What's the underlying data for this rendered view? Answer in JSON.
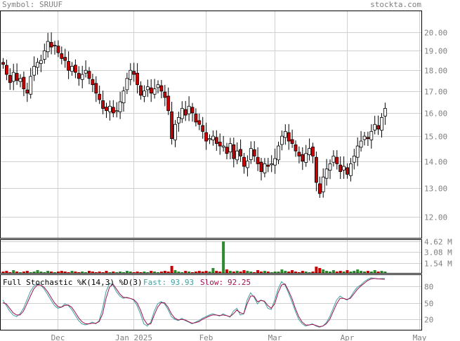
{
  "header": {
    "symbol_label": "Symbol: SRUUF",
    "site": "stockta.com"
  },
  "colors": {
    "up": "#ffffff",
    "down": "#cc0000",
    "candle_outline": "#000000",
    "vol_up": "#2e8b2e",
    "vol_down": "#cc0000",
    "grid": "#d0d0d0",
    "frame": "#000000",
    "stoch_fast": "#40a0a0",
    "stoch_slow": "#a01050"
  },
  "chart_data": [
    {
      "type": "candlestick",
      "title": "Symbol: SRUUF",
      "ylim": [
        11.3,
        21.2
      ],
      "yscale": "log",
      "yticks": [
        "12.00",
        "13.00",
        "14.00",
        "15.00",
        "16.00",
        "17.00",
        "18.00",
        "19.00",
        "20.00"
      ],
      "grid": true,
      "closes": [
        18.3,
        17.8,
        17.4,
        17.9,
        17.5,
        17.6,
        17.1,
        16.9,
        17.7,
        18.2,
        18.4,
        18.5,
        19.0,
        19.5,
        19.2,
        19.3,
        18.9,
        18.6,
        18.5,
        18.0,
        18.2,
        17.9,
        17.6,
        17.8,
        18.0,
        17.6,
        17.3,
        16.9,
        16.6,
        16.2,
        16.1,
        16.3,
        16.0,
        16.1,
        16.5,
        17.0,
        17.6,
        18.0,
        17.8,
        17.3,
        16.8,
        17.0,
        17.2,
        16.9,
        17.1,
        17.3,
        17.0,
        16.7,
        16.1,
        14.9,
        15.5,
        15.8,
        16.2,
        15.9,
        16.3,
        16.0,
        15.6,
        15.5,
        15.2,
        14.8,
        14.9,
        15.0,
        14.7,
        14.6,
        14.6,
        14.3,
        14.7,
        14.1,
        14.4,
        14.2,
        13.8,
        14.0,
        14.5,
        14.2,
        13.9,
        13.6,
        13.9,
        13.8,
        13.9,
        14.1,
        14.6,
        15.0,
        15.2,
        14.8,
        14.7,
        14.4,
        14.2,
        14.0,
        14.3,
        14.5,
        14.2,
        13.2,
        12.8,
        13.4,
        13.7,
        13.9,
        14.2,
        13.9,
        13.6,
        13.8,
        13.5,
        13.9,
        14.2,
        14.6,
        14.8,
        15.0,
        14.9,
        15.2,
        15.5,
        15.3,
        15.8,
        16.2
      ],
      "volume": {
        "ylim": [
          0,
          4.8
        ],
        "yticks": [
          "4.62 M",
          "3.08 M",
          "1.54 M"
        ],
        "values": [
          0.3,
          0.4,
          0.2,
          0.5,
          0.3,
          0.2,
          0.3,
          0.4,
          0.2,
          0.3,
          0.5,
          0.3,
          0.2,
          0.4,
          0.3,
          0.2,
          0.3,
          0.4,
          0.3,
          0.2,
          0.4,
          0.3,
          0.2,
          0.3,
          0.2,
          0.4,
          0.3,
          0.2,
          0.3,
          0.2,
          0.4,
          0.2,
          0.3,
          0.2,
          0.3,
          0.2,
          0.4,
          0.3,
          0.2,
          0.3,
          0.2,
          0.3,
          0.2,
          0.4,
          0.3,
          0.2,
          0.3,
          0.4,
          0.3,
          1.1,
          0.5,
          0.3,
          0.2,
          0.4,
          0.3,
          0.2,
          0.3,
          0.4,
          0.3,
          0.4,
          0.3,
          0.8,
          0.4,
          0.3,
          4.6,
          0.6,
          0.4,
          0.3,
          0.4,
          0.3,
          0.5,
          0.4,
          0.3,
          0.2,
          0.5,
          0.3,
          0.4,
          0.3,
          0.2,
          0.3,
          0.3,
          0.6,
          0.4,
          0.3,
          0.5,
          0.3,
          0.2,
          0.4,
          0.3,
          0.2,
          0.3,
          1.0,
          0.8,
          0.6,
          0.4,
          0.3,
          0.5,
          0.3,
          0.4,
          0.3,
          0.5,
          0.3,
          0.4,
          0.6,
          0.4,
          0.3,
          0.4,
          0.3,
          0.5,
          0.3,
          0.4,
          0.3
        ]
      }
    },
    {
      "type": "line",
      "title": "Full Stochastic %K(14,3) %D(3)",
      "ylim": [
        0,
        100
      ],
      "yticks": [
        "80",
        "50",
        "20"
      ],
      "series": [
        {
          "name": "Fast:",
          "last_label": "93.93",
          "values": [
            55,
            45,
            35,
            28,
            25,
            30,
            40,
            55,
            70,
            80,
            84,
            82,
            75,
            65,
            55,
            45,
            40,
            42,
            48,
            45,
            38,
            28,
            18,
            12,
            10,
            12,
            15,
            12,
            18,
            40,
            70,
            85,
            82,
            70,
            62,
            58,
            60,
            58,
            55,
            45,
            30,
            12,
            8,
            15,
            35,
            48,
            52,
            48,
            38,
            25,
            20,
            18,
            22,
            18,
            15,
            12,
            15,
            18,
            22,
            25,
            28,
            30,
            28,
            26,
            30,
            27,
            24,
            35,
            40,
            28,
            30,
            55,
            68,
            60,
            48,
            55,
            52,
            40,
            38,
            55,
            75,
            88,
            82,
            68,
            52,
            35,
            20,
            12,
            8,
            10,
            12,
            8,
            6,
            8,
            14,
            25,
            40,
            55,
            62,
            58,
            55,
            60,
            70,
            78,
            82,
            88,
            92,
            95,
            94,
            93,
            93.5,
            93.93
          ]
        },
        {
          "name": "Slow:",
          "last_label": "92.25",
          "values": [
            50,
            48,
            40,
            32,
            28,
            28,
            35,
            48,
            62,
            75,
            82,
            82,
            78,
            70,
            60,
            50,
            43,
            42,
            45,
            46,
            42,
            33,
            23,
            16,
            12,
            12,
            13,
            13,
            16,
            30,
            58,
            78,
            84,
            75,
            66,
            60,
            59,
            58,
            56,
            50,
            37,
            20,
            11,
            12,
            28,
            42,
            50,
            50,
            42,
            30,
            22,
            19,
            20,
            19,
            16,
            13,
            14,
            16,
            20,
            23,
            26,
            28,
            28,
            27,
            28,
            27,
            25,
            30,
            37,
            32,
            30,
            48,
            62,
            62,
            52,
            54,
            53,
            45,
            40,
            48,
            68,
            82,
            84,
            72,
            58,
            40,
            25,
            15,
            10,
            10,
            11,
            9,
            7,
            8,
            12,
            20,
            34,
            48,
            58,
            58,
            56,
            58,
            66,
            74,
            80,
            85,
            90,
            93,
            94,
            93,
            92.8,
            92.25
          ]
        }
      ]
    }
  ],
  "x_labels": [
    {
      "label": "Dec",
      "index": 16
    },
    {
      "label": "Jan 2025",
      "index": 38
    },
    {
      "label": "Feb",
      "index": 59
    },
    {
      "label": "Mar",
      "index": 79
    },
    {
      "label": "Apr",
      "index": 100
    },
    {
      "label": "May",
      "index": 121
    }
  ]
}
